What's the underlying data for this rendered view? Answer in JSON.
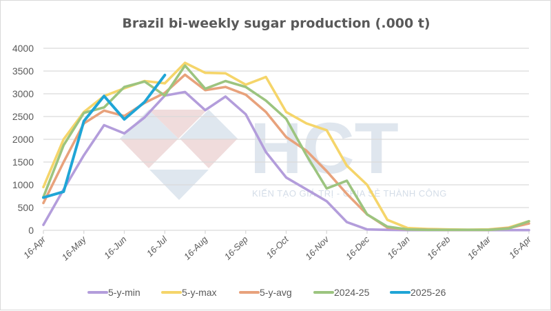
{
  "chart_data": {
    "type": "line",
    "title": "Brazil bi-weekly sugar production (.000 t)",
    "xlabel": "",
    "ylabel": "",
    "ylim": [
      0,
      4000
    ],
    "yticks": [
      "0",
      "500",
      "1000",
      "1500",
      "2000",
      "2500",
      "3000",
      "3500",
      "4000"
    ],
    "ytick_values": [
      0,
      500,
      1000,
      1500,
      2000,
      2500,
      3000,
      3500,
      4000
    ],
    "xticks": [
      "16-Apr",
      "16-May",
      "16-Jun",
      "16-Jul",
      "16-Aug",
      "16-Sep",
      "16-Oct",
      "16-Nov",
      "16-Dec",
      "16-Jan",
      "16-Feb",
      "16-Mar",
      "16-Apr"
    ],
    "grid": true,
    "legend_position": "bottom",
    "x_periods_per_year": 24,
    "series": [
      {
        "name": "5-y-min",
        "color": "#b39ddb",
        "values": [
          120,
          900,
          1650,
          2310,
          2130,
          2480,
          2960,
          3040,
          2640,
          2940,
          2550,
          1720,
          1160,
          900,
          640,
          180,
          20,
          10,
          5,
          5,
          5,
          5,
          5,
          5,
          5
        ]
      },
      {
        "name": "5-y-max",
        "color": "#f5d56a",
        "values": [
          950,
          2000,
          2600,
          2950,
          3120,
          3280,
          3230,
          3680,
          3460,
          3450,
          3200,
          3370,
          2600,
          2350,
          2200,
          1420,
          1000,
          230,
          50,
          30,
          20,
          15,
          20,
          60,
          200
        ]
      },
      {
        "name": "5-y-avg",
        "color": "#e8a27c",
        "values": [
          600,
          1500,
          2350,
          2630,
          2510,
          2800,
          3020,
          3420,
          3080,
          3150,
          2980,
          2600,
          2050,
          1750,
          1300,
          800,
          350,
          60,
          20,
          15,
          10,
          10,
          10,
          50,
          150
        ]
      },
      {
        "name": "2024-25",
        "color": "#9cc47f",
        "values": [
          730,
          1870,
          2580,
          2700,
          3150,
          3270,
          2960,
          3620,
          3110,
          3280,
          3150,
          2850,
          2450,
          1650,
          920,
          1090,
          350,
          80,
          20,
          10,
          10,
          10,
          10,
          40,
          200
        ]
      },
      {
        "name": "2025-26",
        "color": "#1fa5d6",
        "values": [
          720,
          850,
          2400,
          2950,
          2440,
          2820,
          3410
        ]
      }
    ]
  },
  "watermark": {
    "brand": "HCT",
    "slogan": "KIẾN TẠO GIÁ TRỊ - CHIA SẺ THÀNH CÔNG"
  }
}
